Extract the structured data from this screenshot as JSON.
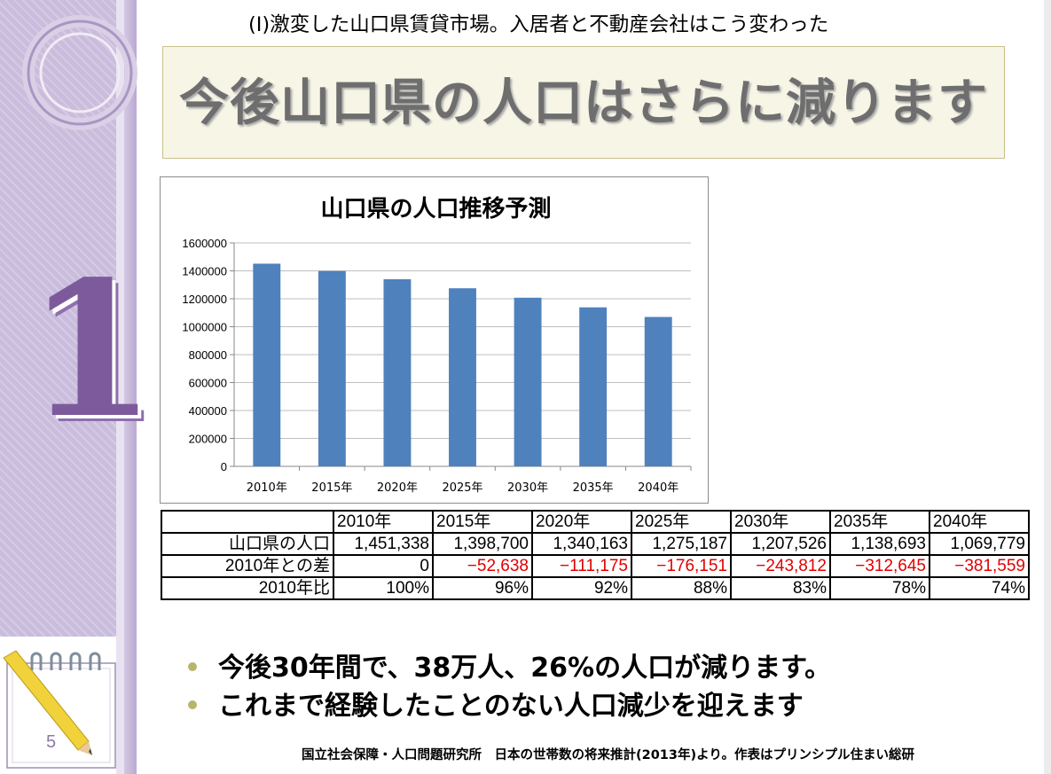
{
  "slide": {
    "subtitle": "(I)激変した山口県賃貸市場。入居者と不動産会社はこう変わった",
    "title": "今後山口県の人口はさらに減ります",
    "section_number": "1",
    "page_number": "5"
  },
  "chart_data": {
    "type": "bar",
    "title": "山口県の人口推移予測",
    "categories": [
      "2010年",
      "2015年",
      "2020年",
      "2025年",
      "2030年",
      "2035年",
      "2040年"
    ],
    "values": [
      1451338,
      1398700,
      1340163,
      1275187,
      1207526,
      1138693,
      1069779
    ],
    "ylim": [
      0,
      1600000
    ],
    "yticks": [
      "0",
      "200000",
      "400000",
      "600000",
      "800000",
      "1000000",
      "1200000",
      "1400000",
      "1600000"
    ],
    "xlabel": "",
    "ylabel": "",
    "grid": true,
    "bar_color": "#4f81bd"
  },
  "table": {
    "headers": [
      "",
      "2010年",
      "2015年",
      "2020年",
      "2025年",
      "2030年",
      "2035年",
      "2040年"
    ],
    "rows": [
      {
        "label": "山口県の人口",
        "cells": [
          "1,451,338",
          "1,398,700",
          "1,340,163",
          "1,275,187",
          "1,207,526",
          "1,138,693",
          "1,069,779"
        ]
      },
      {
        "label": "2010年との差",
        "cells": [
          "0",
          "−52,638",
          "−111,175",
          "−176,151",
          "−243,812",
          "−312,645",
          "−381,559"
        ]
      },
      {
        "label": "2010年比",
        "cells": [
          "100%",
          "96%",
          "92%",
          "88%",
          "83%",
          "78%",
          "74%"
        ]
      }
    ],
    "negative_color": "#e00000"
  },
  "bullets": [
    "今後30年間で、38万人、26%の人口が減ります。",
    "これまで経験したことのない人口減少を迎えます"
  ],
  "footer": "国立社会保障・人口問題研究所　日本の世帯数の将来推計(2013年)より。作表はプリンシプル住まい総研"
}
